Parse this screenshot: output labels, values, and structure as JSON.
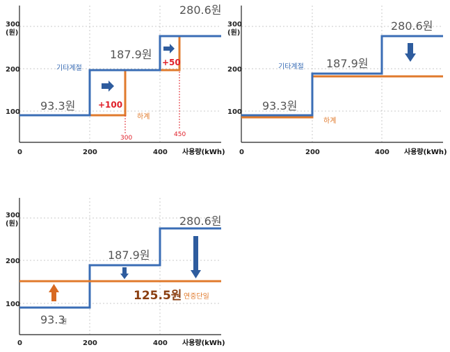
{
  "chart_data": [
    {
      "type": "line",
      "step": true,
      "x_ticks": [
        "0",
        "200",
        "400"
      ],
      "y_ticks": [
        "100",
        "200",
        "300"
      ],
      "y_unit": "(원)",
      "xlabel": "사용량(kWh)",
      "xlim": [
        0,
        580
      ],
      "ylim": [
        0,
        300
      ],
      "series": [
        {
          "name": "기타계절",
          "color": "#3a6db5",
          "points": [
            [
              0,
              93.3
            ],
            [
              200,
              93.3
            ],
            [
              200,
              187.9
            ],
            [
              400,
              187.9
            ],
            [
              400,
              280.6
            ],
            [
              580,
              280.6
            ]
          ]
        },
        {
          "name": "하계",
          "color": "#e07a2c",
          "points": [
            [
              200,
              93.3
            ],
            [
              300,
              93.3
            ],
            [
              300,
              187.9
            ],
            [
              450,
              187.9
            ],
            [
              450,
              280.6
            ],
            [
              580,
              280.6
            ]
          ]
        }
      ],
      "price_labels": [
        "93.3원",
        "187.9원",
        "280.6원"
      ],
      "deltas": [
        "+100",
        "+50"
      ],
      "marks": [
        "300",
        "450"
      ]
    },
    {
      "type": "line",
      "step": true,
      "x_ticks": [
        "0",
        "200",
        "400"
      ],
      "y_ticks": [
        "100",
        "200",
        "300"
      ],
      "y_unit": "(원)",
      "xlabel": "사용량(kWh)",
      "xlim": [
        0,
        580
      ],
      "ylim": [
        0,
        300
      ],
      "series": [
        {
          "name": "기타계절",
          "color": "#3a6db5",
          "points": [
            [
              0,
              93.3
            ],
            [
              200,
              93.3
            ],
            [
              200,
              187.9
            ],
            [
              400,
              187.9
            ],
            [
              400,
              280.6
            ],
            [
              580,
              280.6
            ]
          ]
        },
        {
          "name": "하계",
          "color": "#e07a2c",
          "points": [
            [
              0,
              87
            ],
            [
              200,
              87
            ],
            [
              200,
              183
            ],
            [
              580,
              183
            ]
          ]
        }
      ],
      "price_labels": [
        "93.3원",
        "187.9원",
        "280.6원"
      ]
    },
    {
      "type": "line",
      "step": true,
      "x_ticks": [
        "0",
        "200",
        "400"
      ],
      "y_ticks": [
        "100",
        "200",
        "300"
      ],
      "y_unit": "(원)",
      "xlabel": "사용량(kWh)",
      "xlim": [
        0,
        580
      ],
      "ylim": [
        0,
        300
      ],
      "series": [
        {
          "color": "#3a6db5",
          "points": [
            [
              0,
              93.3
            ],
            [
              200,
              93.3
            ],
            [
              200,
              187.9
            ],
            [
              400,
              187.9
            ],
            [
              400,
              280.6
            ],
            [
              580,
              280.6
            ]
          ]
        },
        {
          "name": "연중단일",
          "color": "#e07a2c",
          "points": [
            [
              0,
              125.5
            ],
            [
              580,
              125.5
            ]
          ]
        }
      ],
      "price_labels": [
        "93.3",
        "원",
        "187.9원",
        "280.6원"
      ],
      "average_label": "125.5원"
    }
  ]
}
